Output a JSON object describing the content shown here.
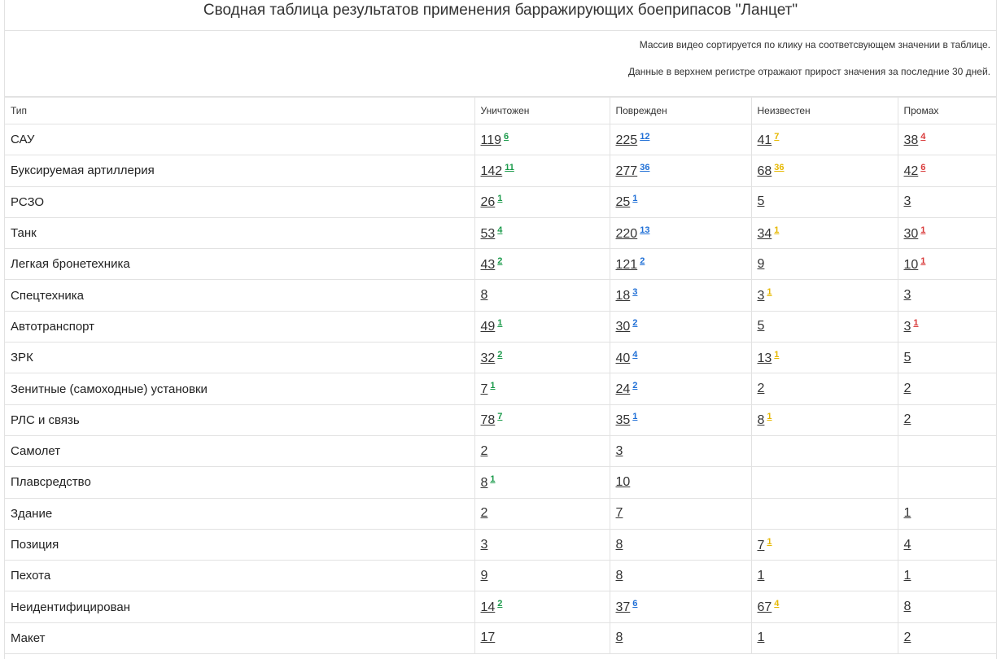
{
  "title": "Сводная таблица результатов применения барражирующих боеприпасов \"Ланцет\"",
  "notes": [
    "Массив видео сортируется по клику на соответсвующем значении в таблице.",
    "Данные в верхнем регистре отражают прирост значения за последние 30 дней."
  ],
  "columns": [
    "Тип",
    "Уничтожен",
    "Поврежден",
    "Неизвестен",
    "Промах"
  ],
  "colors": {
    "destroyed_delta": "#1a9a4a",
    "damaged_delta": "#1f6fd6",
    "unknown_delta": "#e6b800",
    "miss_delta": "#d93a3a"
  },
  "rows": [
    {
      "type": "САУ",
      "destroyed": {
        "v": "119",
        "d": "6"
      },
      "damaged": {
        "v": "225",
        "d": "12"
      },
      "unknown": {
        "v": "41",
        "d": "7"
      },
      "miss": {
        "v": "38",
        "d": "4"
      }
    },
    {
      "type": "Буксируемая артиллерия",
      "destroyed": {
        "v": "142",
        "d": "11"
      },
      "damaged": {
        "v": "277",
        "d": "36"
      },
      "unknown": {
        "v": "68",
        "d": "36"
      },
      "miss": {
        "v": "42",
        "d": "6"
      }
    },
    {
      "type": "РСЗО",
      "destroyed": {
        "v": "26",
        "d": "1"
      },
      "damaged": {
        "v": "25",
        "d": "1"
      },
      "unknown": {
        "v": "5",
        "d": ""
      },
      "miss": {
        "v": "3",
        "d": ""
      }
    },
    {
      "type": "Танк",
      "destroyed": {
        "v": "53",
        "d": "4"
      },
      "damaged": {
        "v": "220",
        "d": "13"
      },
      "unknown": {
        "v": "34",
        "d": "1"
      },
      "miss": {
        "v": "30",
        "d": "1"
      }
    },
    {
      "type": "Легкая бронетехника",
      "destroyed": {
        "v": "43",
        "d": "2"
      },
      "damaged": {
        "v": "121",
        "d": "2"
      },
      "unknown": {
        "v": "9",
        "d": ""
      },
      "miss": {
        "v": "10",
        "d": "1"
      }
    },
    {
      "type": "Спецтехника",
      "destroyed": {
        "v": "8",
        "d": ""
      },
      "damaged": {
        "v": "18",
        "d": "3"
      },
      "unknown": {
        "v": "3",
        "d": "1"
      },
      "miss": {
        "v": "3",
        "d": ""
      }
    },
    {
      "type": "Автотранспорт",
      "destroyed": {
        "v": "49",
        "d": "1"
      },
      "damaged": {
        "v": "30",
        "d": "2"
      },
      "unknown": {
        "v": "5",
        "d": ""
      },
      "miss": {
        "v": "3",
        "d": "1"
      }
    },
    {
      "type": "ЗРК",
      "destroyed": {
        "v": "32",
        "d": "2"
      },
      "damaged": {
        "v": "40",
        "d": "4"
      },
      "unknown": {
        "v": "13",
        "d": "1"
      },
      "miss": {
        "v": "5",
        "d": ""
      }
    },
    {
      "type": "Зенитные (самоходные) установки",
      "destroyed": {
        "v": "7",
        "d": "1"
      },
      "damaged": {
        "v": "24",
        "d": "2"
      },
      "unknown": {
        "v": "2",
        "d": ""
      },
      "miss": {
        "v": "2",
        "d": ""
      }
    },
    {
      "type": "РЛС и связь",
      "destroyed": {
        "v": "78",
        "d": "7"
      },
      "damaged": {
        "v": "35",
        "d": "1"
      },
      "unknown": {
        "v": "8",
        "d": "1"
      },
      "miss": {
        "v": "2",
        "d": ""
      }
    },
    {
      "type": "Самолет",
      "destroyed": {
        "v": "2",
        "d": ""
      },
      "damaged": {
        "v": "3",
        "d": ""
      },
      "unknown": {
        "v": "",
        "d": ""
      },
      "miss": {
        "v": "",
        "d": ""
      }
    },
    {
      "type": "Плавсредство",
      "destroyed": {
        "v": "8",
        "d": "1"
      },
      "damaged": {
        "v": "10",
        "d": ""
      },
      "unknown": {
        "v": "",
        "d": ""
      },
      "miss": {
        "v": "",
        "d": ""
      }
    },
    {
      "type": "Здание",
      "destroyed": {
        "v": "2",
        "d": ""
      },
      "damaged": {
        "v": "7",
        "d": ""
      },
      "unknown": {
        "v": "",
        "d": ""
      },
      "miss": {
        "v": "1",
        "d": ""
      }
    },
    {
      "type": "Позиция",
      "destroyed": {
        "v": "3",
        "d": ""
      },
      "damaged": {
        "v": "8",
        "d": ""
      },
      "unknown": {
        "v": "7",
        "d": "1"
      },
      "miss": {
        "v": "4",
        "d": ""
      }
    },
    {
      "type": "Пехота",
      "destroyed": {
        "v": "9",
        "d": ""
      },
      "damaged": {
        "v": "8",
        "d": ""
      },
      "unknown": {
        "v": "1",
        "d": ""
      },
      "miss": {
        "v": "1",
        "d": ""
      }
    },
    {
      "type": "Неидентифицирован",
      "destroyed": {
        "v": "14",
        "d": "2"
      },
      "damaged": {
        "v": "37",
        "d": "6"
      },
      "unknown": {
        "v": "67",
        "d": "4"
      },
      "miss": {
        "v": "8",
        "d": ""
      }
    },
    {
      "type": "Макет",
      "destroyed": {
        "v": "17",
        "d": ""
      },
      "damaged": {
        "v": "8",
        "d": ""
      },
      "unknown": {
        "v": "1",
        "d": ""
      },
      "miss": {
        "v": "2",
        "d": ""
      }
    }
  ]
}
